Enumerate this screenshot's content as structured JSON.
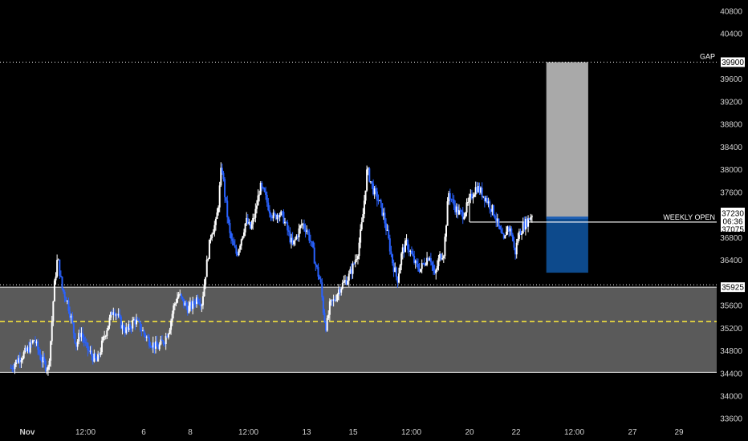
{
  "chart_data": {
    "type": "candlestick",
    "instrument_note": "",
    "y_range": [
      33600,
      41000
    ],
    "y_ticks": [
      40800,
      40400,
      39600,
      39200,
      38800,
      38400,
      38000,
      37600,
      36800,
      36400,
      35600,
      35200,
      34800,
      34400,
      34000,
      33600
    ],
    "x_ticks": [
      {
        "label": "Nov",
        "day": 1,
        "bold": true
      },
      {
        "label": "12:00",
        "day": 3.5
      },
      {
        "label": "6",
        "day": 6
      },
      {
        "label": "8",
        "day": 8
      },
      {
        "label": "12:00",
        "day": 10.5
      },
      {
        "label": "13",
        "day": 13
      },
      {
        "label": "15",
        "day": 15
      },
      {
        "label": "12:00",
        "day": 17.5
      },
      {
        "label": "20",
        "day": 20
      },
      {
        "label": "22",
        "day": 22
      },
      {
        "label": "12:00",
        "day": 24.5
      },
      {
        "label": "27",
        "day": 27
      },
      {
        "label": "29",
        "day": 29
      }
    ],
    "x_range_days": [
      0.3,
      30.7
    ],
    "levels": {
      "gap": {
        "label": "GAP",
        "value": 39900,
        "tag": "39900"
      },
      "weekly_open": {
        "label": "WEEKLY OPEN",
        "value": 37075,
        "tag": "37075"
      },
      "range_top": {
        "value": 35925,
        "tag": "35925"
      },
      "range_mid": {
        "value": 35320
      },
      "range_bottom": {
        "value": 34420
      }
    },
    "current_price": {
      "value": 37230,
      "tag": "37230",
      "countdown": "06:36"
    },
    "position_tool": {
      "day_start": 23.3,
      "day_end": 25.1,
      "entry": 37150,
      "target": 39900,
      "stop": 36180
    },
    "colors": {
      "up": "#ffffff",
      "down": "#2962ff",
      "range_fill": "#5a5a5a",
      "mid_line": "#ffeb3b",
      "target_fill": "#a9a9a9",
      "stop_fill": "#0d4a8c",
      "entry_line": "#1e5fb3"
    },
    "price_path": [
      [
        0.3,
        34500
      ],
      [
        0.6,
        34650
      ],
      [
        1.0,
        34800
      ],
      [
        1.3,
        35000
      ],
      [
        1.6,
        34650
      ],
      [
        1.9,
        34480
      ],
      [
        2.0,
        34950
      ],
      [
        2.15,
        35900
      ],
      [
        2.3,
        36450
      ],
      [
        2.5,
        35900
      ],
      [
        2.7,
        35700
      ],
      [
        2.9,
        35350
      ],
      [
        3.1,
        34900
      ],
      [
        3.3,
        35150
      ],
      [
        3.5,
        34880
      ],
      [
        3.8,
        34700
      ],
      [
        4.0,
        34600
      ],
      [
        4.3,
        35050
      ],
      [
        4.5,
        35300
      ],
      [
        4.7,
        35550
      ],
      [
        4.9,
        35400
      ],
      [
        5.1,
        35200
      ],
      [
        5.3,
        35150
      ],
      [
        5.6,
        35350
      ],
      [
        5.8,
        35250
      ],
      [
        6.1,
        35050
      ],
      [
        6.3,
        34950
      ],
      [
        6.6,
        34850
      ],
      [
        6.9,
        35000
      ],
      [
        7.1,
        35200
      ],
      [
        7.3,
        35600
      ],
      [
        7.5,
        35800
      ],
      [
        7.7,
        35650
      ],
      [
        7.9,
        35550
      ],
      [
        8.1,
        35600
      ],
      [
        8.3,
        35750
      ],
      [
        8.5,
        35650
      ],
      [
        8.7,
        36300
      ],
      [
        8.9,
        36900
      ],
      [
        9.1,
        37050
      ],
      [
        9.2,
        37350
      ],
      [
        9.35,
        38100
      ],
      [
        9.5,
        37500
      ],
      [
        9.7,
        36850
      ],
      [
        9.85,
        36650
      ],
      [
        10.0,
        36500
      ],
      [
        10.2,
        36800
      ],
      [
        10.4,
        37100
      ],
      [
        10.6,
        36950
      ],
      [
        10.8,
        37250
      ],
      [
        11.0,
        37700
      ],
      [
        11.2,
        37550
      ],
      [
        11.4,
        37300
      ],
      [
        11.6,
        37150
      ],
      [
        11.8,
        37250
      ],
      [
        12.0,
        37150
      ],
      [
        12.2,
        36900
      ],
      [
        12.4,
        36650
      ],
      [
        12.6,
        36850
      ],
      [
        12.8,
        37050
      ],
      [
        13.0,
        36950
      ],
      [
        13.2,
        36700
      ],
      [
        13.4,
        36300
      ],
      [
        13.6,
        36000
      ],
      [
        13.75,
        35400
      ],
      [
        13.85,
        35200
      ],
      [
        14.0,
        35600
      ],
      [
        14.2,
        35700
      ],
      [
        14.4,
        35900
      ],
      [
        14.6,
        36000
      ],
      [
        14.8,
        36100
      ],
      [
        15.0,
        36300
      ],
      [
        15.2,
        36550
      ],
      [
        15.4,
        37100
      ],
      [
        15.6,
        38000
      ],
      [
        15.75,
        37800
      ],
      [
        15.9,
        37600
      ],
      [
        16.1,
        37450
      ],
      [
        16.3,
        37200
      ],
      [
        16.5,
        36800
      ],
      [
        16.7,
        36350
      ],
      [
        16.9,
        36050
      ],
      [
        17.1,
        36550
      ],
      [
        17.3,
        36700
      ],
      [
        17.5,
        36500
      ],
      [
        17.7,
        36300
      ],
      [
        17.9,
        36250
      ],
      [
        18.1,
        36400
      ],
      [
        18.3,
        36500
      ],
      [
        18.5,
        36100
      ],
      [
        18.7,
        36450
      ],
      [
        18.9,
        36550
      ],
      [
        19.1,
        37600
      ],
      [
        19.3,
        37400
      ],
      [
        19.5,
        37250
      ],
      [
        19.7,
        37200
      ],
      [
        19.9,
        37350
      ],
      [
        20.1,
        37550
      ],
      [
        20.3,
        37700
      ],
      [
        20.5,
        37600
      ],
      [
        20.7,
        37500
      ],
      [
        20.9,
        37350
      ],
      [
        21.1,
        37200
      ],
      [
        21.3,
        36900
      ],
      [
        21.5,
        36700
      ],
      [
        21.6,
        37000
      ],
      [
        21.8,
        36900
      ],
      [
        21.95,
        36500
      ],
      [
        22.1,
        36850
      ],
      [
        22.3,
        37000
      ],
      [
        22.5,
        37100
      ],
      [
        22.7,
        37230
      ]
    ]
  }
}
